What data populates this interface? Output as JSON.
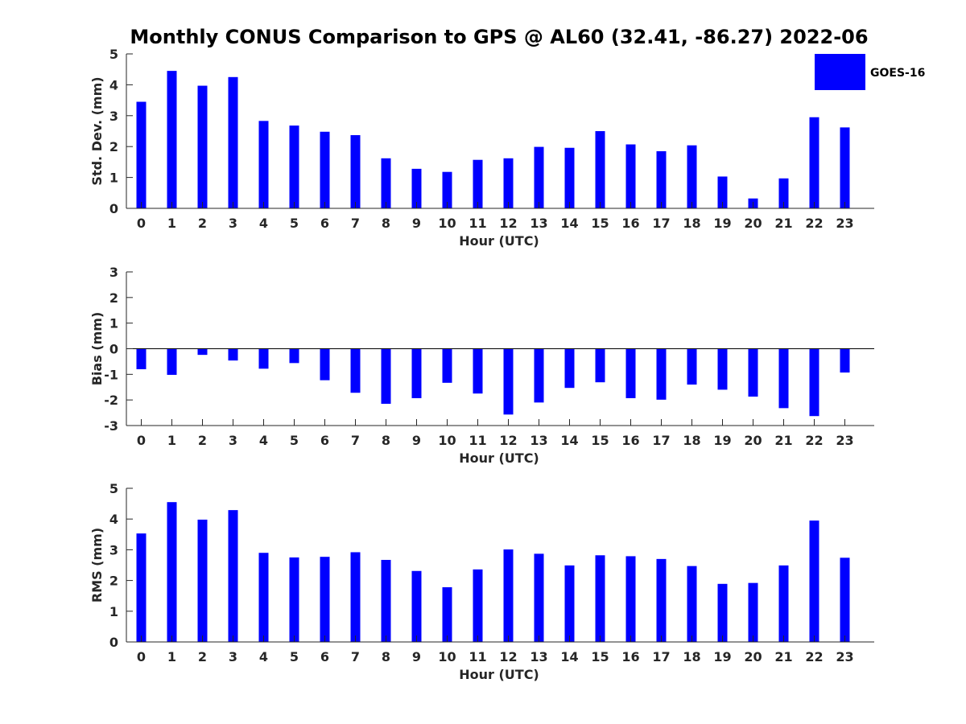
{
  "figure_title": "Monthly CONUS Comparison to GPS @ AL60 (32.41, -86.27) 2022-06",
  "legend": {
    "label": "GOES-16",
    "color": "#0000ff"
  },
  "chart_data": [
    {
      "type": "bar",
      "ylabel": "Std. Dev. (mm)",
      "xlabel": "Hour (UTC)",
      "ylim": [
        0,
        5
      ],
      "yticks": [
        0,
        1,
        2,
        3,
        4,
        5
      ],
      "categories": [
        0,
        1,
        2,
        3,
        4,
        5,
        6,
        7,
        8,
        9,
        10,
        11,
        12,
        13,
        14,
        15,
        16,
        17,
        18,
        19,
        20,
        21,
        22,
        23
      ],
      "series": [
        {
          "name": "GOES-16",
          "color": "#0000ff",
          "values": [
            3.45,
            4.45,
            3.97,
            4.25,
            2.83,
            2.68,
            2.48,
            2.37,
            1.62,
            1.28,
            1.18,
            1.57,
            1.62,
            1.99,
            1.96,
            2.5,
            2.07,
            1.85,
            2.04,
            1.03,
            0.32,
            0.97,
            2.95,
            2.62
          ]
        }
      ],
      "grid": false
    },
    {
      "type": "bar",
      "ylabel": "Bias (mm)",
      "xlabel": "Hour (UTC)",
      "ylim": [
        -3,
        3
      ],
      "yticks": [
        -3,
        -2,
        -1,
        0,
        1,
        2,
        3
      ],
      "categories": [
        0,
        1,
        2,
        3,
        4,
        5,
        6,
        7,
        8,
        9,
        10,
        11,
        12,
        13,
        14,
        15,
        16,
        17,
        18,
        19,
        20,
        21,
        22,
        23
      ],
      "series": [
        {
          "name": "GOES-16",
          "color": "#0000ff",
          "values": [
            -0.8,
            -1.02,
            -0.24,
            -0.46,
            -0.78,
            -0.56,
            -1.23,
            -1.72,
            -2.15,
            -1.93,
            -1.33,
            -1.75,
            -2.57,
            -2.1,
            -1.53,
            -1.31,
            -1.93,
            -1.99,
            -1.4,
            -1.6,
            -1.87,
            -2.32,
            -2.63,
            -0.93
          ]
        }
      ],
      "grid": false
    },
    {
      "type": "bar",
      "ylabel": "RMS (mm)",
      "xlabel": "Hour (UTC)",
      "ylim": [
        0,
        5
      ],
      "yticks": [
        0,
        1,
        2,
        3,
        4,
        5
      ],
      "categories": [
        0,
        1,
        2,
        3,
        4,
        5,
        6,
        7,
        8,
        9,
        10,
        11,
        12,
        13,
        14,
        15,
        16,
        17,
        18,
        19,
        20,
        21,
        22,
        23
      ],
      "series": [
        {
          "name": "GOES-16",
          "color": "#0000ff",
          "values": [
            3.53,
            4.55,
            3.98,
            4.29,
            2.9,
            2.75,
            2.77,
            2.92,
            2.67,
            2.31,
            1.78,
            2.36,
            3.01,
            2.87,
            2.49,
            2.82,
            2.79,
            2.7,
            2.47,
            1.89,
            1.92,
            2.49,
            3.95,
            2.74
          ]
        }
      ],
      "grid": false
    }
  ]
}
